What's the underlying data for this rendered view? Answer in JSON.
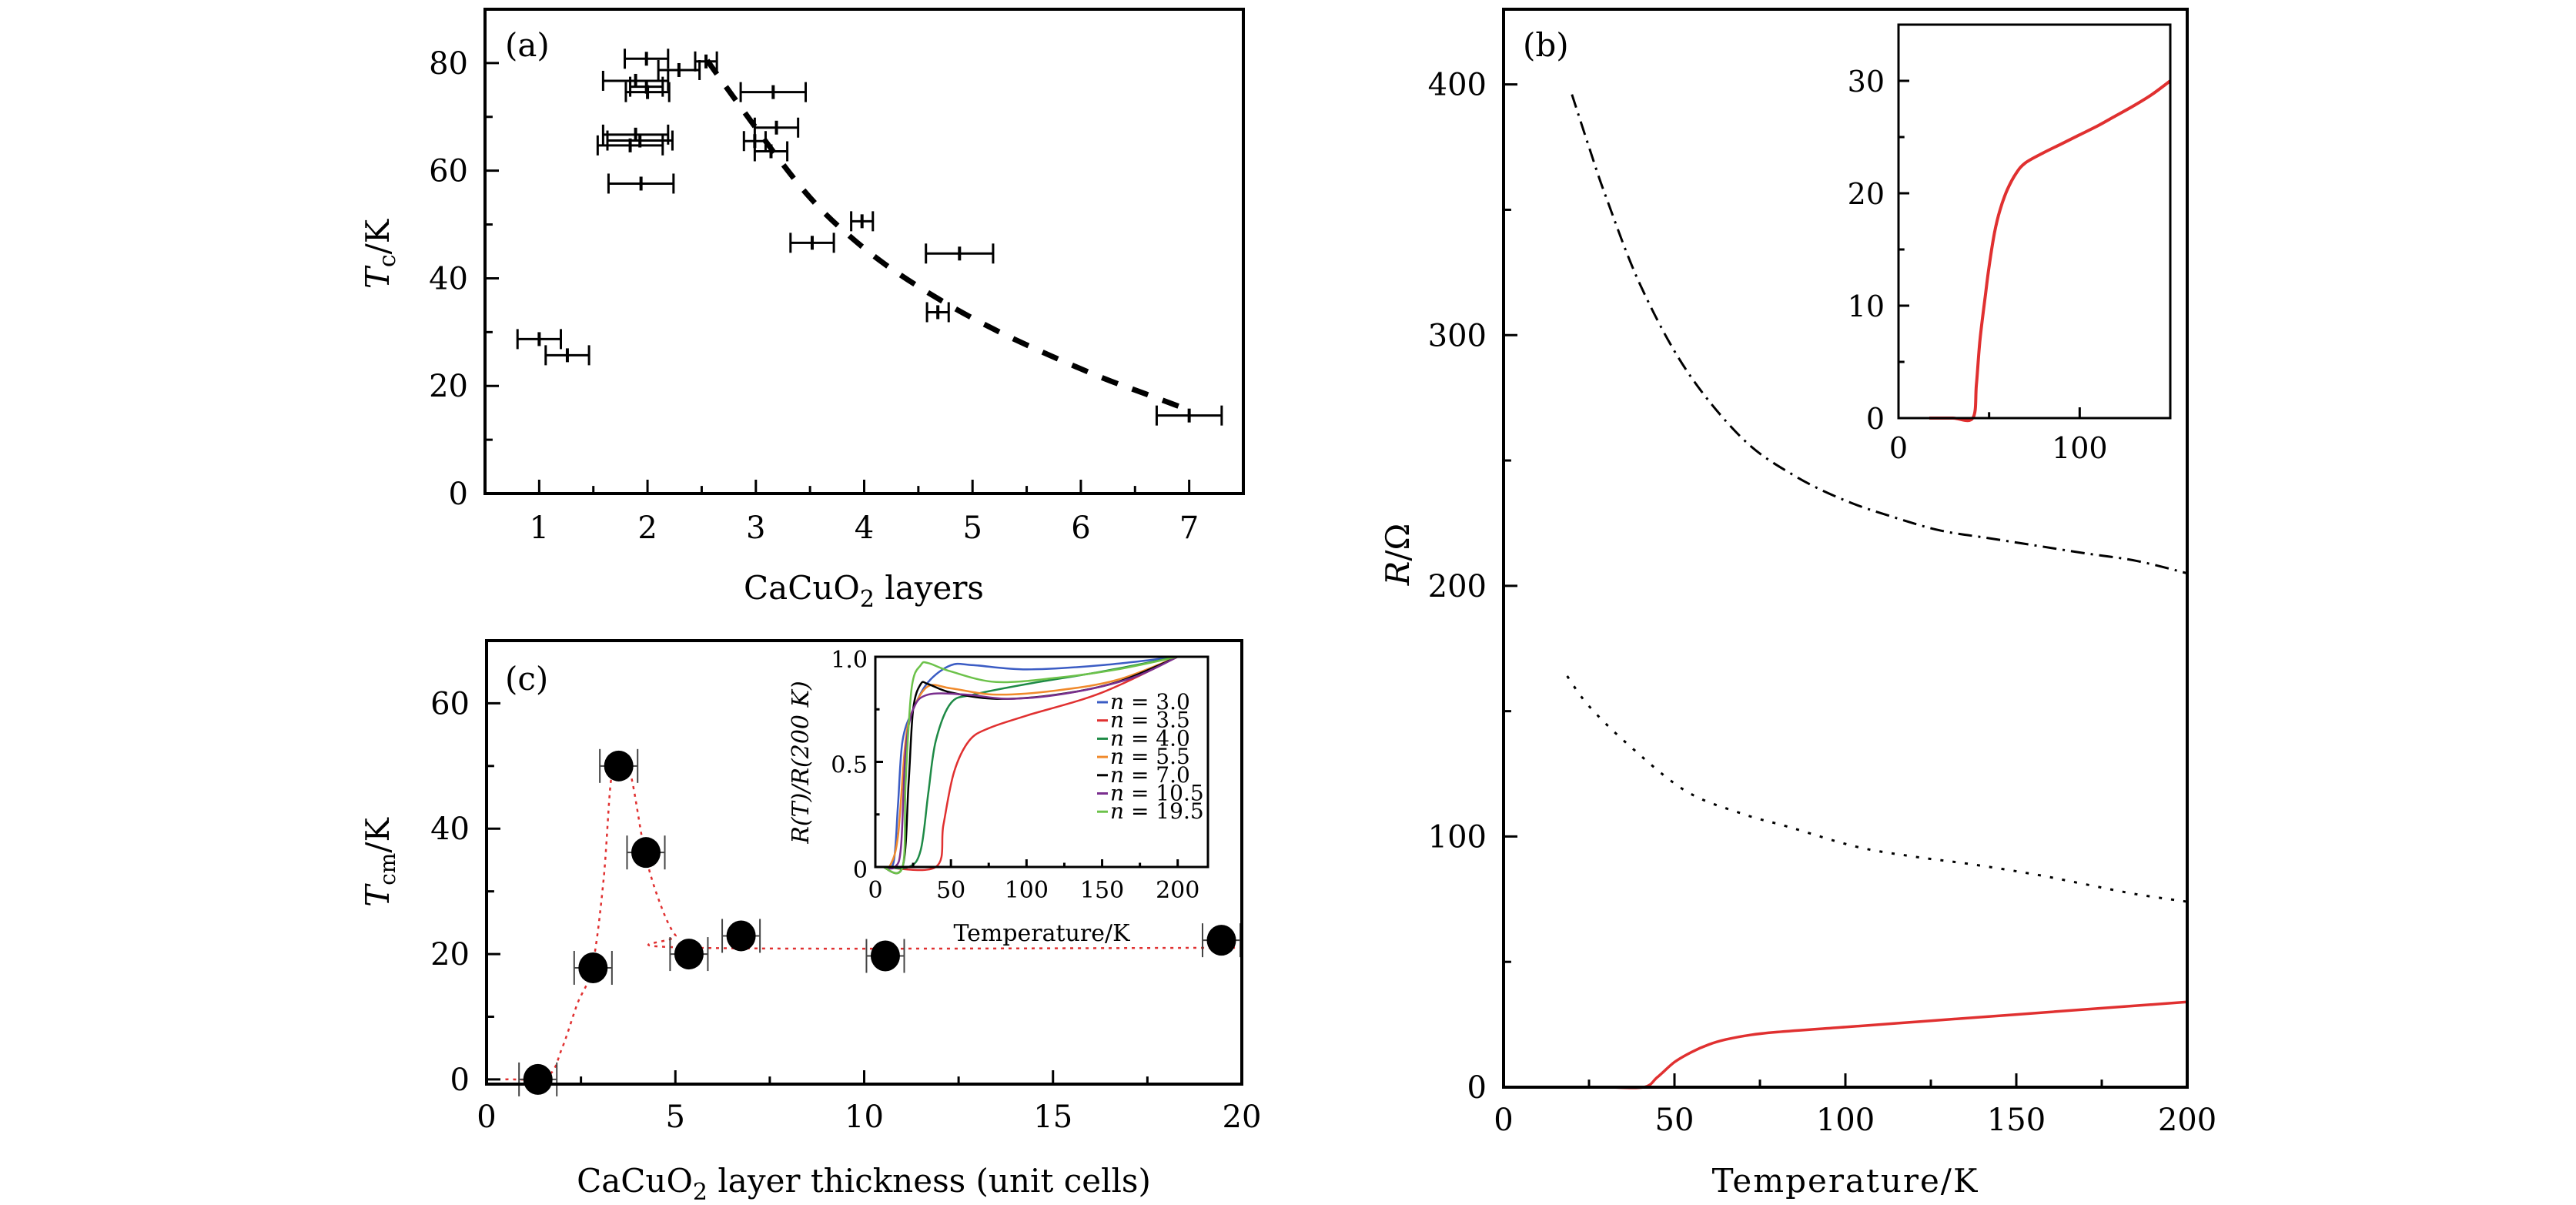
{
  "chart_data": [
    {
      "panel": "a",
      "type": "scatter",
      "panel_label": "(a)",
      "title": "",
      "xlabel": "CaCuO2 layers",
      "xlabel_parts": {
        "main": "CaCuO",
        "sub": "2",
        "rest": " layers"
      },
      "ylabel": "Tc/K",
      "ylabel_parts": {
        "main": "T",
        "sub": "c",
        "rest": "/K"
      },
      "xlim": [
        0.5,
        7.5
      ],
      "ylim": [
        0,
        90
      ],
      "xticks": [
        1,
        2,
        3,
        4,
        5,
        6,
        7
      ],
      "yticks": [
        0,
        20,
        40,
        60,
        80
      ],
      "grid": false,
      "points": [
        {
          "x": 1.0,
          "y": 28.7,
          "xerr": 0.2
        },
        {
          "x": 1.26,
          "y": 25.7,
          "xerr": 0.2
        },
        {
          "x": 1.99,
          "y": 80.8,
          "xerr": 0.2
        },
        {
          "x": 2.29,
          "y": 78.7,
          "xerr": 0.19
        },
        {
          "x": 2.54,
          "y": 80.3,
          "xerr": 0.1
        },
        {
          "x": 1.89,
          "y": 76.7,
          "xerr": 0.3
        },
        {
          "x": 1.99,
          "y": 75.6,
          "xerr": 0.15
        },
        {
          "x": 2.0,
          "y": 74.6,
          "xerr": 0.2
        },
        {
          "x": 3.16,
          "y": 74.6,
          "xerr": 0.3
        },
        {
          "x": 3.19,
          "y": 68.0,
          "xerr": 0.2
        },
        {
          "x": 2.99,
          "y": 65.5,
          "xerr": 0.1
        },
        {
          "x": 3.14,
          "y": 63.6,
          "xerr": 0.15
        },
        {
          "x": 1.89,
          "y": 66.7,
          "xerr": 0.3
        },
        {
          "x": 1.93,
          "y": 65.6,
          "xerr": 0.3
        },
        {
          "x": 1.84,
          "y": 64.7,
          "xerr": 0.3
        },
        {
          "x": 1.94,
          "y": 57.6,
          "xerr": 0.3
        },
        {
          "x": 3.98,
          "y": 50.6,
          "xerr": 0.1
        },
        {
          "x": 3.52,
          "y": 46.6,
          "xerr": 0.2
        },
        {
          "x": 4.88,
          "y": 44.6,
          "xerr": 0.31
        },
        {
          "x": 4.68,
          "y": 33.7,
          "xerr": 0.1
        },
        {
          "x": 7.0,
          "y": 14.5,
          "xerr": 0.3
        }
      ],
      "fit_curve": {
        "style": "dashed",
        "color": "#000000",
        "x": [
          2.55,
          2.8,
          3.2,
          3.5,
          3.8,
          4.2,
          4.7,
          5.2,
          5.7,
          6.2,
          6.6,
          7.0
        ],
        "y": [
          80.5,
          73.5,
          62.5,
          55.0,
          49.0,
          42.5,
          36.0,
          30.5,
          25.8,
          21.5,
          18.5,
          15.5
        ]
      }
    },
    {
      "panel": "b",
      "type": "line",
      "panel_label": "(b)",
      "title": "",
      "xlabel": "Temperature/K",
      "ylabel": "R/Ω",
      "ylabel_parts": {
        "main": "R",
        "rest": "/Ω"
      },
      "xlim": [
        0,
        200
      ],
      "ylim": [
        0,
        430
      ],
      "xticks": [
        0,
        50,
        100,
        150,
        200
      ],
      "yticks": [
        0,
        100,
        200,
        300,
        400
      ],
      "grid": false,
      "series": [
        {
          "name": "dash-dot curve",
          "style": "dashdot",
          "color": "#000000",
          "x": [
            20,
            25,
            30,
            40,
            53.5,
            70,
            85,
            100,
            115,
            128,
            142,
            156,
            170,
            185,
            200
          ],
          "y": [
            396,
            375,
            355,
            320,
            286,
            258.6,
            244,
            234,
            227,
            222,
            219,
            216,
            213,
            210,
            205
          ]
        },
        {
          "name": "dotted curve",
          "style": "dotted",
          "color": "#000000",
          "x": [
            18.6,
            25,
            37,
            53.5,
            70,
            83,
            103,
            120,
            136.5,
            155,
            170,
            185,
            200
          ],
          "y": [
            164,
            152,
            136,
            118,
            109,
            104,
            96,
            92,
            89,
            85,
            81,
            77,
            74
          ]
        },
        {
          "name": "red solid curve",
          "style": "solid",
          "color": "#e03030",
          "x": [
            18,
            30,
            41,
            45,
            50,
            55,
            60,
            65,
            72,
            80,
            100,
            125,
            150,
            175,
            200
          ],
          "y": [
            0,
            0,
            0,
            4,
            10,
            14,
            17,
            19,
            20.8,
            22,
            24,
            26.5,
            29,
            31.5,
            34
          ]
        }
      ],
      "inset": {
        "type": "line",
        "xlim": [
          0,
          150
        ],
        "ylim": [
          0,
          35
        ],
        "xticks": [
          0,
          100
        ],
        "yticks": [
          0,
          10,
          20,
          30
        ],
        "series": [
          {
            "name": "red solid curve (zoom)",
            "style": "solid",
            "color": "#e03030",
            "x": [
              17,
              30,
              41,
              43,
              45,
              48,
              50,
              53,
              56,
              60,
              65,
              70,
              80,
              90,
              100,
              110,
              120,
              130,
              140,
              150
            ],
            "y": [
              0,
              0,
              0,
              3,
              7,
              11,
              13.5,
              16.5,
              18.5,
              20.3,
              21.8,
              22.7,
              23.6,
              24.4,
              25.2,
              26.0,
              26.9,
              27.8,
              28.8,
              30.0
            ]
          }
        ]
      }
    },
    {
      "panel": "c",
      "type": "scatter",
      "panel_label": "(c)",
      "title": "",
      "xlabel": "CaCuO2 layer thickness (unit cells)",
      "xlabel_parts": {
        "main": "CaCuO",
        "sub": "2",
        "rest": " layer thickness (unit cells)"
      },
      "ylabel": "Tcm/K",
      "ylabel_parts": {
        "main": "T",
        "sub": "cm",
        "rest": "/K"
      },
      "xlim": [
        0,
        20
      ],
      "ylim": [
        -0.75,
        70
      ],
      "xticks": [
        0,
        5,
        10,
        15,
        20
      ],
      "yticks": [
        0,
        20,
        40,
        60
      ],
      "grid": false,
      "points": [
        {
          "x": 1.36,
          "y": 0,
          "xerr": 0.5
        },
        {
          "x": 2.82,
          "y": 17.8,
          "xerr": 0.5
        },
        {
          "x": 3.5,
          "y": 50,
          "xerr": 0.5
        },
        {
          "x": 4.22,
          "y": 36.2,
          "xerr": 0.5
        },
        {
          "x": 5.36,
          "y": 20,
          "xerr": 0.5
        },
        {
          "x": 6.74,
          "y": 22.9,
          "xerr": 0.5
        },
        {
          "x": 10.56,
          "y": 19.7,
          "xerr": 0.5
        },
        {
          "x": 19.46,
          "y": 22.2,
          "xerr": 0.5
        }
      ],
      "guide_line": {
        "style": "dotted",
        "color": "#e03030",
        "x": [
          0.5,
          1.6,
          2.0,
          2.4,
          2.8,
          3.1,
          3.3,
          3.5,
          3.8,
          4.2,
          4.6,
          5.0,
          5.5,
          20.0
        ],
        "y": [
          0,
          0.5,
          5,
          12,
          18,
          32,
          48,
          50,
          49,
          36,
          28,
          23,
          21,
          21
        ]
      },
      "inset": {
        "type": "line",
        "xlabel": "Temperature/K",
        "ylabel": "R(T)/R(200 K)",
        "xlim": [
          0,
          220
        ],
        "ylim": [
          0,
          1.0
        ],
        "xticks": [
          0,
          50,
          100,
          150,
          200
        ],
        "yticks": [
          0,
          0.5,
          1.0
        ],
        "ytick_labels": [
          "0",
          "0.5",
          "1.0"
        ],
        "legend_position": "right",
        "series": [
          {
            "name": "n = 3.0",
            "label_var": "n",
            "label_value": "3.0",
            "color": "#3b5cc4",
            "x": [
              5,
              12,
              15,
              18,
              25,
              35,
              50,
              65,
              100,
              150,
              200
            ],
            "y": [
              0,
              0.02,
              0.3,
              0.6,
              0.75,
              0.88,
              0.96,
              0.96,
              0.94,
              0.96,
              1.0
            ]
          },
          {
            "name": "n = 3.5",
            "label_var": "n",
            "label_value": "3.5",
            "color": "#e03030",
            "x": [
              5,
              40,
              45,
              52,
              62,
              75,
              100,
              150,
              200
            ],
            "y": [
              0,
              0,
              0.2,
              0.45,
              0.6,
              0.66,
              0.72,
              0.83,
              1.0
            ]
          },
          {
            "name": "n = 4.0",
            "label_var": "n",
            "label_value": "4.0",
            "color": "#1e8a46",
            "x": [
              5,
              22,
              30,
              35,
              40,
              50,
              65,
              100,
              150,
              200
            ],
            "y": [
              0,
              0,
              0.08,
              0.35,
              0.6,
              0.78,
              0.82,
              0.87,
              0.93,
              1.0
            ]
          },
          {
            "name": "n = 5.5",
            "label_var": "n",
            "label_value": "5.5",
            "color": "#f08a2c",
            "x": [
              5,
              10,
              15,
              20,
              25,
              35,
              50,
              80,
              120,
              160,
              200
            ],
            "y": [
              0,
              0.01,
              0.15,
              0.6,
              0.75,
              0.86,
              0.85,
              0.82,
              0.84,
              0.89,
              1.0
            ]
          },
          {
            "name": "n = 7.0",
            "label_var": "n",
            "label_value": "7.0",
            "color": "#000000",
            "x": [
              5,
              18,
              22,
              25,
              30,
              35,
              50,
              80,
              120,
              160,
              200
            ],
            "y": [
              0,
              0,
              0.4,
              0.75,
              0.87,
              0.87,
              0.83,
              0.8,
              0.82,
              0.88,
              1.0
            ]
          },
          {
            "name": "n = 10.5",
            "label_var": "n",
            "label_value": "10.5",
            "color": "#7a2e8e",
            "x": [
              5,
              13,
              17,
              20,
              25,
              35,
              60,
              90,
              130,
              170,
              200
            ],
            "y": [
              0,
              0,
              0.1,
              0.55,
              0.75,
              0.82,
              0.82,
              0.8,
              0.83,
              0.9,
              1.0
            ]
          },
          {
            "name": "n = 19.5",
            "label_var": "n",
            "label_value": "19.5",
            "color": "#6cc24a",
            "x": [
              5,
              18,
              20,
              24,
              30,
              35,
              50,
              80,
              120,
              160,
              200
            ],
            "y": [
              0,
              0,
              0.4,
              0.85,
              0.96,
              0.97,
              0.93,
              0.88,
              0.9,
              0.94,
              1.0
            ]
          }
        ]
      }
    }
  ]
}
